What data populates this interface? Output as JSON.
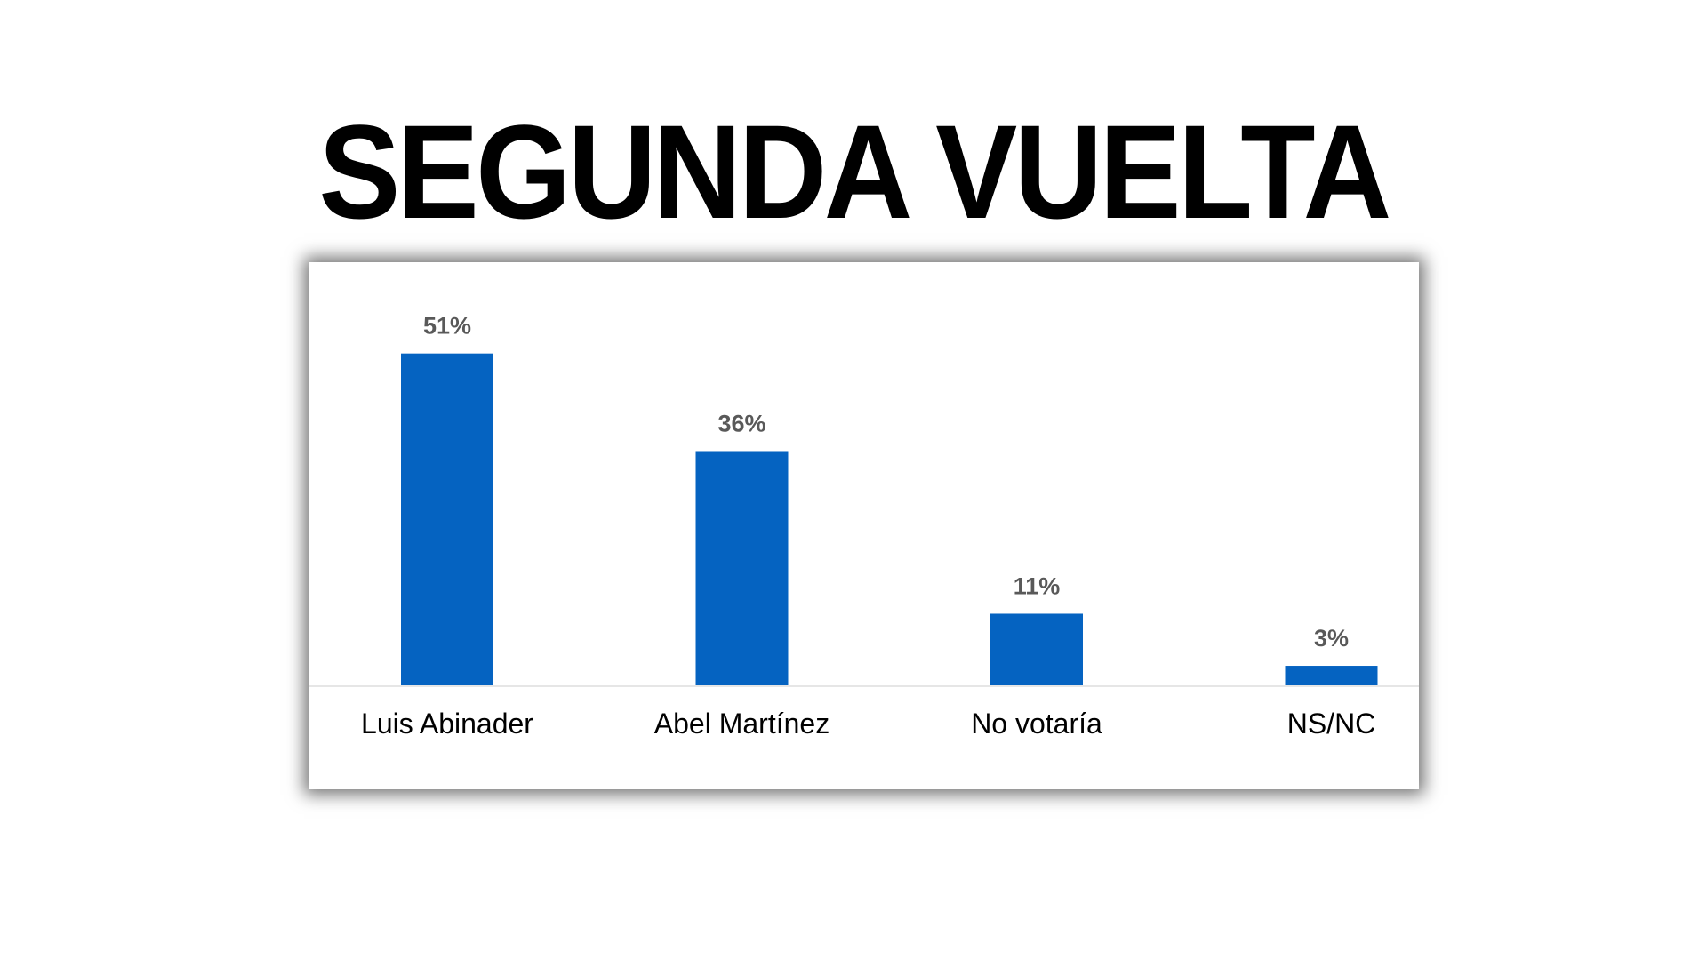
{
  "title": "SEGUNDA VUELTA",
  "colors": {
    "bar": "#0563C1",
    "baseline": "#E6E6E6",
    "data_label": "#595959"
  },
  "chart_data": {
    "type": "bar",
    "title": "SEGUNDA VUELTA",
    "categories": [
      "Luis Abinader",
      "Abel Martínez",
      "No votaría",
      "NS/NC"
    ],
    "values": [
      51,
      36,
      11,
      3
    ],
    "data_labels": [
      "51%",
      "36%",
      "11%",
      "3%"
    ],
    "xlabel": "",
    "ylabel": "",
    "ylim": [
      0,
      60
    ],
    "grid": false,
    "legend": "none"
  }
}
